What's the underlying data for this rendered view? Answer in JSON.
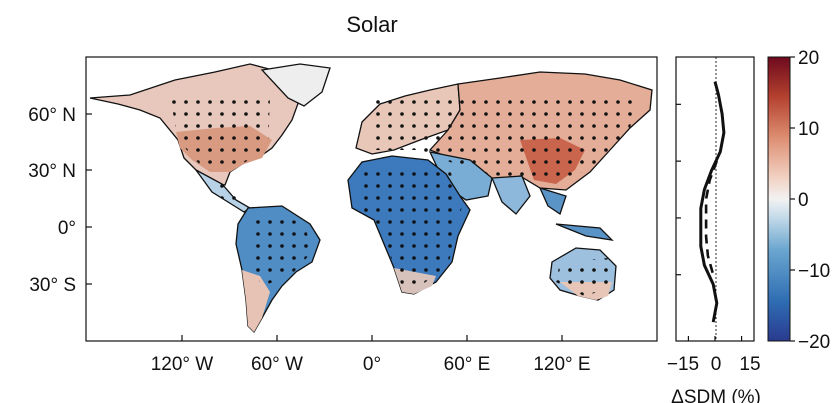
{
  "title": "Solar",
  "map": {
    "lat_ticks": [
      "60° N",
      "30° N",
      "0°",
      "30° S"
    ],
    "lon_ticks": [
      "120° W",
      "60° W",
      "0°",
      "60° E",
      "120° E"
    ]
  },
  "profile": {
    "x_ticks": [
      "−15",
      "0",
      "15"
    ],
    "xlabel": "ΔSDM (%)",
    "xlim": [
      -22,
      22
    ],
    "series": [
      {
        "lat": 72,
        "value": 0
      },
      {
        "lat": 65,
        "value": 2
      },
      {
        "lat": 55,
        "value": 4
      },
      {
        "lat": 45,
        "value": 5
      },
      {
        "lat": 35,
        "value": 3
      },
      {
        "lat": 25,
        "value": -2
      },
      {
        "lat": 15,
        "value": -6
      },
      {
        "lat": 5,
        "value": -8
      },
      {
        "lat": -5,
        "value": -8
      },
      {
        "lat": -15,
        "value": -8
      },
      {
        "lat": -25,
        "value": -6
      },
      {
        "lat": -35,
        "value": -1
      },
      {
        "lat": -45,
        "value": 1
      },
      {
        "lat": -55,
        "value": -1
      }
    ],
    "dashed_series": [
      {
        "lat": 30,
        "value": 1
      },
      {
        "lat": 20,
        "value": -3
      },
      {
        "lat": 10,
        "value": -5
      },
      {
        "lat": 0,
        "value": -5
      },
      {
        "lat": -10,
        "value": -5
      },
      {
        "lat": -20,
        "value": -4
      },
      {
        "lat": -30,
        "value": -1
      }
    ]
  },
  "colorbar": {
    "ticks": [
      "20",
      "10",
      "0",
      "−10",
      "−20"
    ],
    "range": [
      -20,
      20
    ],
    "colors": [
      "#2a3a8f",
      "#2f6db3",
      "#6aa6cf",
      "#c7dcea",
      "#f2f2f2",
      "#f1cfc0",
      "#dc8c70",
      "#b4412f",
      "#6e0a1e"
    ]
  }
}
